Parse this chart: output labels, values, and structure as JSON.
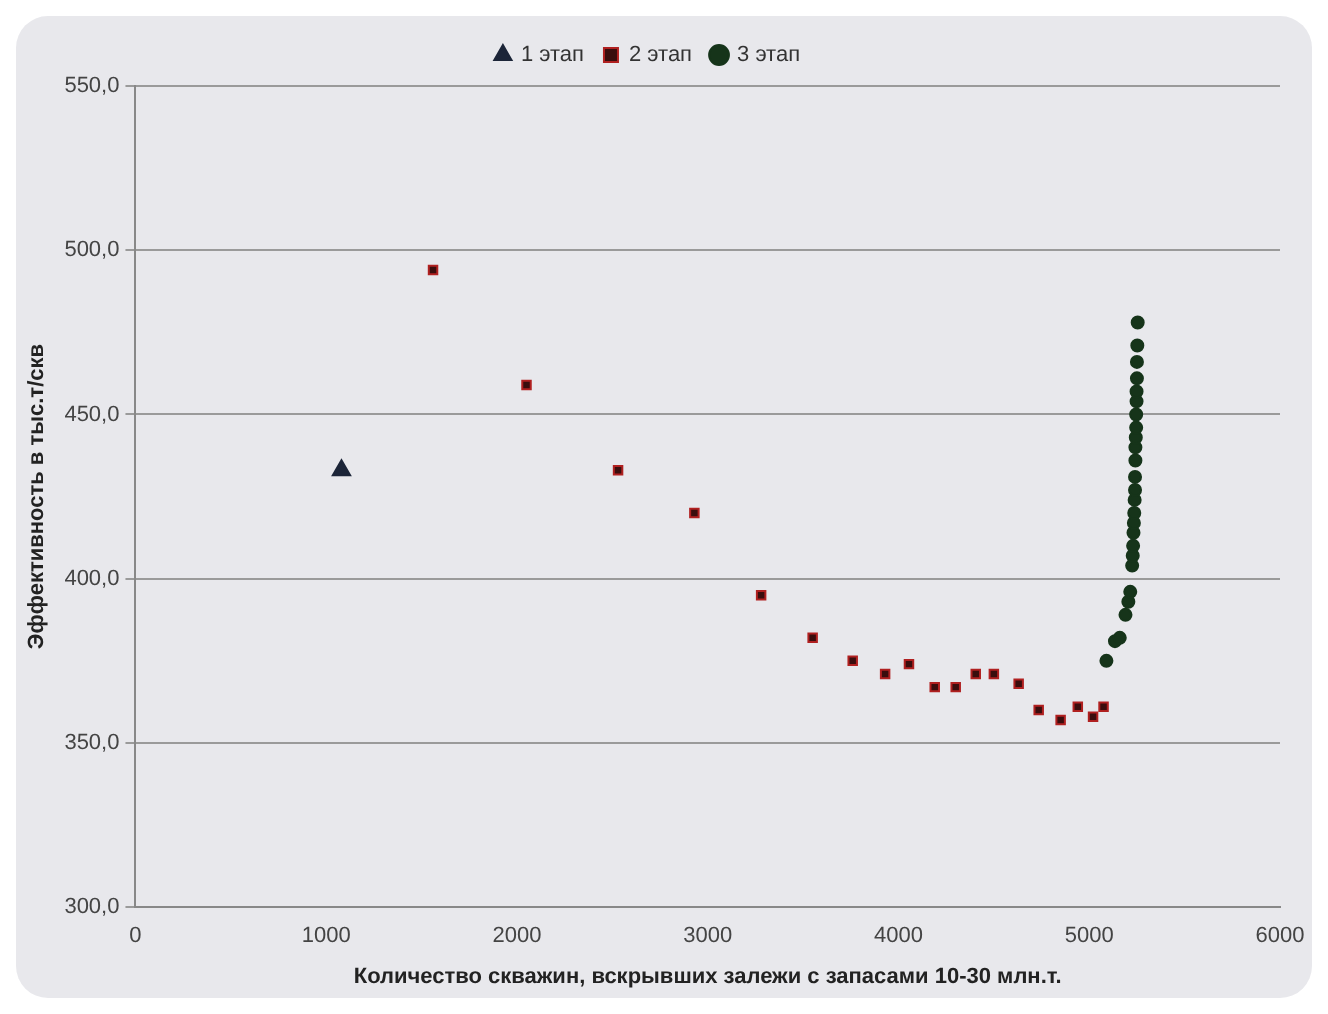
{
  "chart_data": {
    "type": "scatter",
    "xlabel": "Количество скважин, вскрывших залежи с запасами 10-30 млн.т.",
    "ylabel": "Эффективность в тыс.т/скв",
    "xlim": [
      0,
      6000
    ],
    "xticks": [
      0,
      1000,
      2000,
      3000,
      4000,
      5000,
      6000
    ],
    "ylim": [
      300,
      550
    ],
    "yticks": [
      {
        "value": 300,
        "label": "300,0"
      },
      {
        "value": 350,
        "label": "350,0"
      },
      {
        "value": 400,
        "label": "400,0"
      },
      {
        "value": 450,
        "label": "450,0"
      },
      {
        "value": 500,
        "label": "500,0"
      },
      {
        "value": 550,
        "label": "550,0"
      }
    ],
    "grid": "y",
    "legend": "top",
    "series": [
      {
        "name": "1 этап",
        "color": "#1c2538",
        "marker": "triangle",
        "x": [
          1080
        ],
        "values": [
          433
        ]
      },
      {
        "name": "2 этап",
        "color": "#3a0d0d",
        "marker": "square",
        "x": [
          1560,
          2050,
          2530,
          2930,
          3280,
          3550,
          3760,
          3930,
          4055,
          4190,
          4300,
          4405,
          4500,
          4630,
          4735,
          4850,
          4940,
          5020,
          5075
        ],
        "values": [
          494,
          459,
          433,
          420,
          395,
          382,
          375,
          371,
          374,
          367,
          367,
          371,
          371,
          368,
          360,
          357,
          361,
          358,
          361
        ]
      },
      {
        "name": "3 этап",
        "color": "#16341a",
        "marker": "circle",
        "x": [
          5090,
          5135,
          5160,
          5190,
          5205,
          5215,
          5225,
          5228,
          5230,
          5232,
          5234,
          5236,
          5238,
          5240,
          5240,
          5242,
          5242,
          5244,
          5246,
          5246,
          5248,
          5248,
          5250
        ],
        "values": [
          375,
          381,
          382,
          389,
          393,
          396,
          404,
          407,
          410,
          414,
          417,
          420,
          424,
          427,
          431,
          436,
          440,
          443,
          446,
          450,
          454,
          457,
          461
        ]
      },
      {
        "color": "#16341a",
        "marker": "circle",
        "x": [
          5250,
          5252,
          5254
        ],
        "values": [
          466,
          471,
          478
        ]
      }
    ]
  }
}
